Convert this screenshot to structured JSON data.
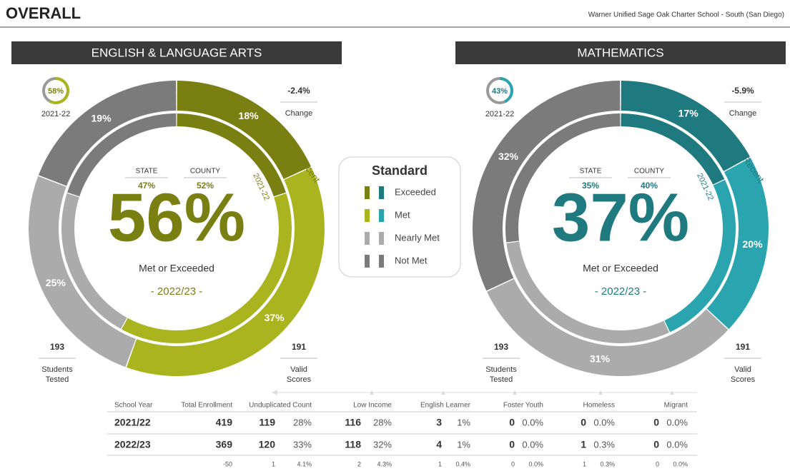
{
  "header": {
    "title": "OVERALL",
    "school": "Warner Unified Sage Oak Charter School - South (San Diego)"
  },
  "panels": [
    {
      "subject": "ENGLISH & LANGUAGE ARTS",
      "accent": "#7a7f12",
      "colors": [
        "#7a7f12",
        "#a9b41f",
        "#ababab",
        "#7b7b7b"
      ],
      "prior_gauge": {
        "value": 58,
        "label": "58%"
      },
      "prior_label": "2021-22",
      "change": "-2.4%",
      "change_label": "Change",
      "state_label": "STATE",
      "state": "47%",
      "county_label": "COUNTY",
      "county": "52%",
      "headline": "56%",
      "headline_label": "Met or Exceeded",
      "year": "- 2022/23 -",
      "outer_label": "Most Recent",
      "inner_label": "2021-22",
      "outer": [
        {
          "value": 18,
          "label": "18%"
        },
        {
          "value": 37,
          "label": "37%"
        },
        {
          "value": 25,
          "label": "25%"
        },
        {
          "value": 19,
          "label": "19%"
        }
      ],
      "inner": [
        20,
        38,
        22,
        20
      ],
      "tested": "193",
      "tested_label": [
        "Students",
        "Tested"
      ],
      "valid": "191",
      "valid_label": [
        "Valid",
        "Scores"
      ]
    },
    {
      "subject": "MATHEMATICS",
      "accent": "#1f7a80",
      "colors": [
        "#1f7a80",
        "#2aa5b0",
        "#ababab",
        "#7b7b7b"
      ],
      "prior_gauge": {
        "value": 43,
        "label": "43%"
      },
      "prior_label": "2021-22",
      "change": "-5.9%",
      "change_label": "Change",
      "state_label": "STATE",
      "state": "35%",
      "county_label": "COUNTY",
      "county": "40%",
      "headline": "37%",
      "headline_label": "Met or Exceeded",
      "year": "- 2022/23 -",
      "outer_label": "Most Recent",
      "inner_label": "2021-22",
      "outer": [
        {
          "value": 17,
          "label": "17%"
        },
        {
          "value": 20,
          "label": "20%"
        },
        {
          "value": 31,
          "label": "31%"
        },
        {
          "value": 32,
          "label": "32%"
        }
      ],
      "inner": [
        18,
        25,
        30,
        27
      ],
      "tested": "193",
      "tested_label": [
        "Students",
        "Tested"
      ],
      "valid": "191",
      "valid_label": [
        "Valid",
        "Scores"
      ]
    }
  ],
  "legend": {
    "title": "Standard",
    "items": [
      "Exceeded",
      "Met",
      "Nearly Met",
      "Not Met"
    ]
  },
  "table": {
    "headers": [
      "School Year",
      "Total Enrollment",
      "Unduplicated Count",
      "Low Income",
      "English Learner",
      "Foster Youth",
      "Homeless",
      "Migrant"
    ],
    "rows": [
      {
        "year": "2021/22",
        "cells": [
          "419",
          "119",
          "28%",
          "116",
          "28%",
          "3",
          "1%",
          "0",
          "0.0%",
          "0",
          "0.0%",
          "0",
          "0.0%"
        ]
      },
      {
        "year": "2022/23",
        "cells": [
          "369",
          "120",
          "33%",
          "118",
          "32%",
          "4",
          "1%",
          "0",
          "0.0%",
          "1",
          "0.3%",
          "0",
          "0.0%"
        ]
      }
    ],
    "change_row": [
      "-50",
      "1",
      "4.1%",
      "2",
      "4.3%",
      "1",
      "0.4%",
      "0",
      "0.0%",
      "1",
      "0.3%",
      "0",
      "0.0%"
    ]
  }
}
